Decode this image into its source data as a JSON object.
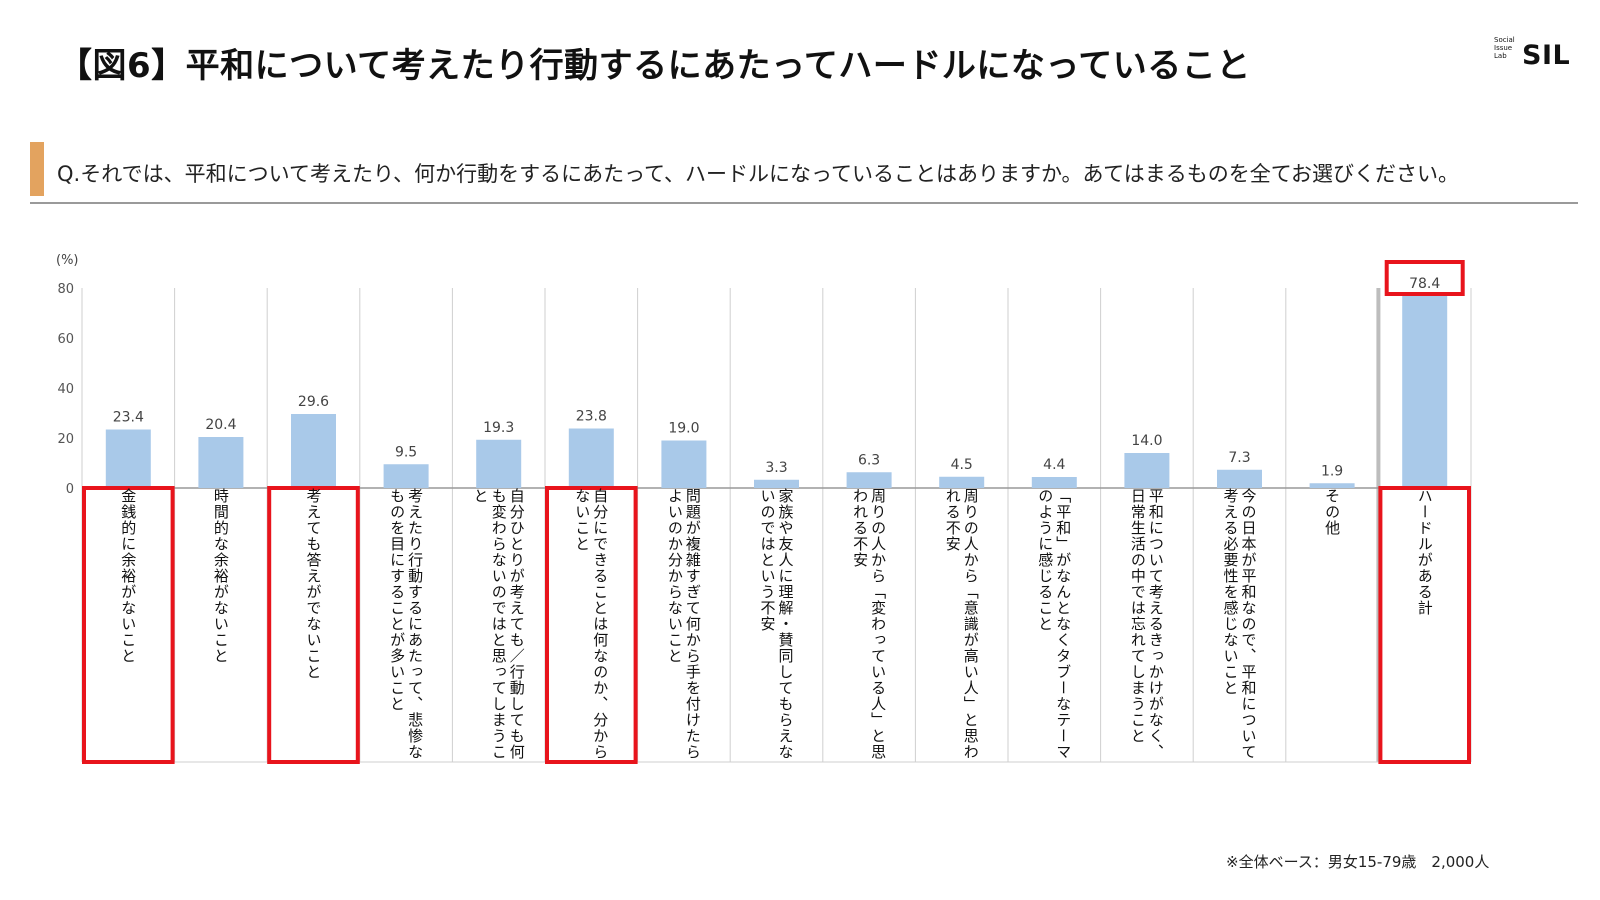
{
  "header": {
    "title": "【図6】平和について考えたり行動するにあたってハードルになっていること",
    "logo_small": "Social\nIssue\nLab",
    "logo_big": "SIL"
  },
  "question": "Q.それでは、平和について考えたり、何か行動をするにあたって、ハードルになっていることはありますか。あてはまるものを全てお選びください。",
  "footnote": "※全体ベース：男女15-79歳　2,000人",
  "colors": {
    "bar": "#a9c9e9",
    "highlight": "#e8141c",
    "accent": "#e3a35f",
    "grid": "#cfcfcf"
  },
  "chart_data": {
    "type": "bar",
    "unit_label": "(%)",
    "ylim": [
      0,
      80
    ],
    "yticks": [
      0,
      20,
      40,
      60,
      80
    ],
    "categories": [
      "金銭的に余裕がないこと",
      "時間的な余裕がないこと",
      "考えても答えがでないこと",
      "考えたり行動するにあたって、悲惨なものを目にすることが多いこと",
      "自分ひとりが考えても／行動しても何も変わらないのではと思ってしまうこと",
      "自分にできることは何なのか、分からないこと",
      "問題が複雑すぎて何から手を付けたらよいのか分からないこと",
      "家族や友人に理解・賛同してもらえないのではという不安",
      "周りの人から「変わっている人」と思われる不安",
      "周りの人から「意識が高い人」と思われる不安",
      "「平和」がなんとなくタブーなテーマのように感じること",
      "平和について考えるきっかけがなく、日常生活の中では忘れてしまうこと",
      "今の日本が平和なので、平和について考える必要性を感じないこと",
      "その他",
      "ハードルがある計"
    ],
    "values": [
      23.4,
      20.4,
      29.6,
      9.5,
      19.3,
      23.8,
      19.0,
      3.3,
      6.3,
      4.5,
      4.4,
      14.0,
      7.3,
      1.9,
      78.4
    ],
    "value_labels": [
      "23.4",
      "20.4",
      "29.6",
      "9.5",
      "19.3",
      "23.8",
      "19.0",
      "3.3",
      "6.3",
      "4.5",
      "4.4",
      "14.0",
      "7.3",
      "1.9",
      "78.4"
    ],
    "highlighted": [
      0,
      2,
      5,
      14
    ]
  }
}
